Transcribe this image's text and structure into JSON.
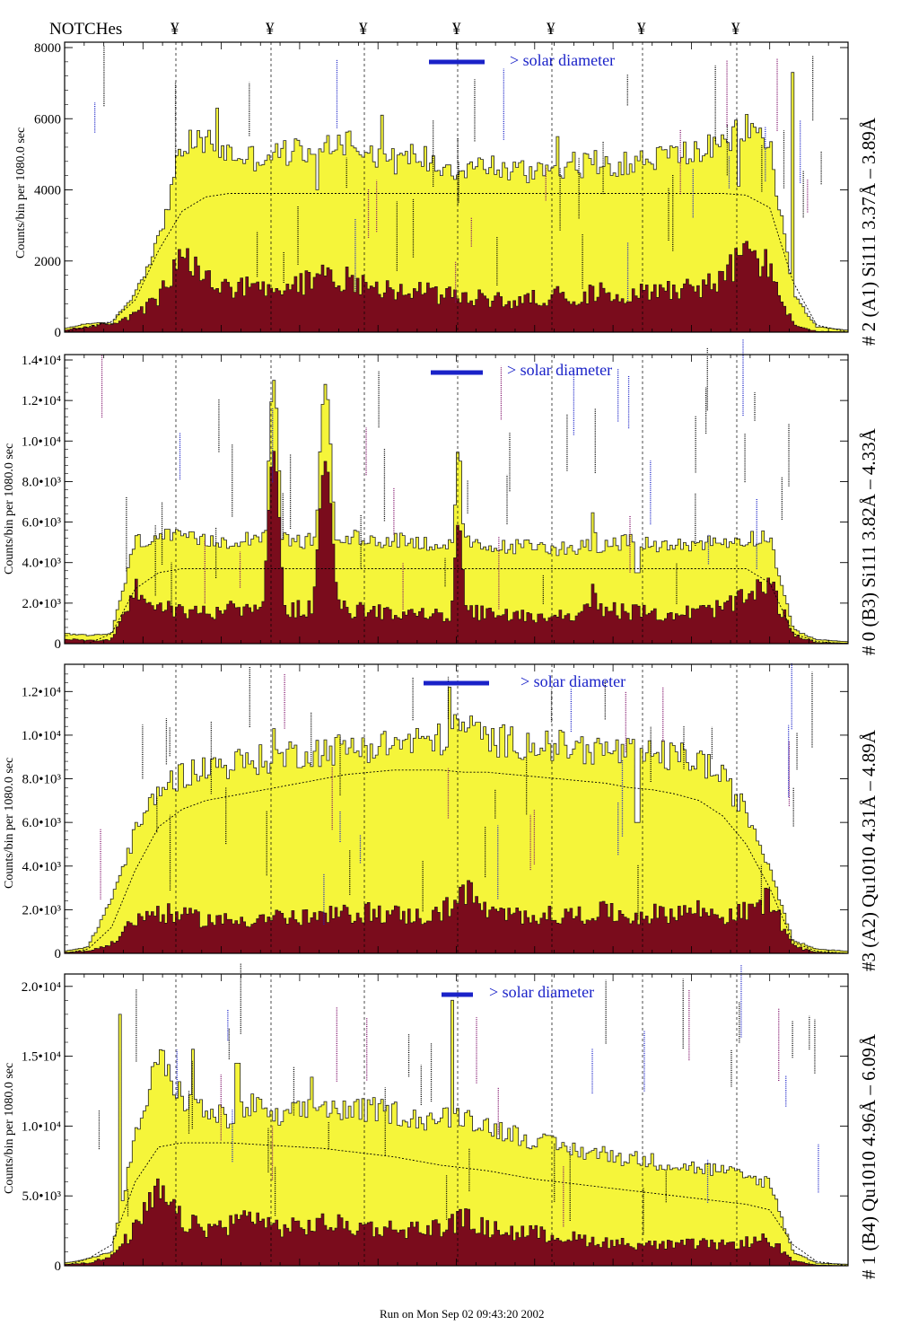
{
  "header": {
    "notch_title": "NOTCHes",
    "notch_glyph": "¥",
    "notch_count": 7
  },
  "footer": {
    "run_text": "Run on Mon Sep 02 09:43:20 2002"
  },
  "colors": {
    "fill_total": "#f5f53a",
    "fill_sub": "#7a0c1c",
    "solar_marker": "#1a22c8",
    "line_label_black": "#000000",
    "line_label_blue": "#1a22c8",
    "line_label_purple": "#80106a"
  },
  "chart_data": [
    {
      "type": "bar",
      "name": "panel-A1",
      "right_label": "# 2 (A1) Si111  3.37Å – 3.89Å",
      "ylabel": "Counts/bin per   1080.0 sec",
      "solar_label": "> solar diameter",
      "ylim": [
        0,
        8000
      ],
      "yticks": [
        {
          "v": 0,
          "label": "0"
        },
        {
          "v": 2000,
          "label": "2000"
        },
        {
          "v": 4000,
          "label": "4000"
        },
        {
          "v": 6000,
          "label": "6000"
        },
        {
          "v": 8000,
          "label": "8000"
        }
      ],
      "x": [
        0,
        3,
        6,
        9,
        12,
        15,
        18,
        21,
        24,
        27,
        30,
        33,
        36,
        39,
        42,
        45,
        48,
        51,
        54,
        57,
        60,
        63,
        66,
        69,
        72,
        75,
        78,
        81,
        84,
        87,
        90,
        93,
        96,
        100
      ],
      "total": [
        100,
        250,
        250,
        1100,
        2600,
        5200,
        5400,
        5000,
        4900,
        5000,
        5100,
        5300,
        5400,
        5100,
        4800,
        5000,
        4700,
        4600,
        4700,
        4500,
        4600,
        4700,
        4700,
        4800,
        4700,
        4900,
        5000,
        5100,
        5200,
        5800,
        5300,
        1100,
        150,
        50
      ],
      "sub": [
        50,
        150,
        250,
        450,
        900,
        1900,
        1500,
        1100,
        1200,
        1000,
        1300,
        1500,
        1400,
        1300,
        1100,
        1100,
        1000,
        900,
        900,
        800,
        900,
        1000,
        950,
        1100,
        1000,
        1100,
        1200,
        1200,
        1400,
        2200,
        1700,
        200,
        20,
        10
      ],
      "profile": [
        0,
        150,
        300,
        900,
        2300,
        3400,
        3800,
        3900,
        3900,
        3900,
        3900,
        3900,
        3900,
        3900,
        3900,
        3900,
        3900,
        3900,
        3900,
        3900,
        3900,
        3900,
        3900,
        3900,
        3900,
        3900,
        3900,
        3900,
        3900,
        3850,
        3500,
        1400,
        200,
        0
      ],
      "notch_dips": [
        {
          "x": 32.2,
          "v": 4000
        },
        {
          "x": 59.2,
          "v": 4200
        },
        {
          "x": 86.0,
          "v": 4100
        }
      ],
      "spikes": [
        {
          "x": 19.5,
          "v": 6300
        },
        {
          "x": 40.5,
          "v": 6100
        },
        {
          "x": 63.0,
          "v": 5500
        },
        {
          "x": 92.8,
          "v": 7300
        }
      ]
    },
    {
      "type": "bar",
      "name": "panel-B3",
      "right_label": "# 0 (B3) Si111  3.82Å – 4.33Å",
      "ylabel": "Counts/bin per   1080.0 sec",
      "solar_label": "> solar diameter",
      "ylim": [
        0,
        14000
      ],
      "yticks": [
        {
          "v": 0,
          "label": "0"
        },
        {
          "v": 2000,
          "label": "2.0•10³"
        },
        {
          "v": 4000,
          "label": "4.0•10³"
        },
        {
          "v": 6000,
          "label": "6.0•10³"
        },
        {
          "v": 8000,
          "label": "8.0•10³"
        },
        {
          "v": 10000,
          "label": "1.0•10⁴"
        },
        {
          "v": 12000,
          "label": "1.2•10⁴"
        },
        {
          "v": 14000,
          "label": "1.4•10⁴"
        }
      ],
      "x": [
        0,
        3,
        6,
        9,
        12,
        15,
        18,
        21,
        24,
        27,
        30,
        33,
        36,
        39,
        42,
        45,
        48,
        51,
        54,
        57,
        60,
        63,
        66,
        69,
        72,
        75,
        78,
        81,
        84,
        87,
        90,
        93,
        96,
        100
      ],
      "total": [
        500,
        400,
        500,
        5000,
        5300,
        5200,
        5000,
        5100,
        5300,
        5200,
        5000,
        5300,
        5300,
        5000,
        5200,
        5000,
        4900,
        5000,
        4700,
        4800,
        4800,
        4700,
        4800,
        4900,
        5000,
        4900,
        4800,
        5000,
        5000,
        5200,
        5300,
        700,
        200,
        100
      ],
      "sub": [
        200,
        150,
        200,
        2500,
        1800,
        1500,
        1500,
        1600,
        1500,
        1700,
        1600,
        1800,
        1600,
        1500,
        1500,
        1400,
        1300,
        1500,
        1400,
        1300,
        1300,
        1300,
        1500,
        1600,
        1500,
        1400,
        1400,
        1500,
        1700,
        2100,
        2800,
        400,
        50,
        30
      ],
      "profile": [
        0,
        0,
        500,
        2700,
        3500,
        3700,
        3700,
        3700,
        3700,
        3700,
        3700,
        3700,
        3700,
        3700,
        3700,
        3700,
        3700,
        3700,
        3700,
        3700,
        3700,
        3700,
        3700,
        3700,
        3700,
        3700,
        3700,
        3700,
        3700,
        3700,
        3000,
        500,
        100,
        0
      ],
      "notch_dips": [
        {
          "x": 73.1,
          "v": 3500
        }
      ],
      "peaks": [
        {
          "x": 26.7,
          "w": 1.1,
          "total": 13000,
          "sub": 9500
        },
        {
          "x": 33.3,
          "w": 1.3,
          "total": 12800,
          "sub": 9000
        },
        {
          "x": 50.3,
          "w": 0.8,
          "total": 9700,
          "sub": 6000
        },
        {
          "x": 67.5,
          "w": 0.6,
          "total": 6600,
          "sub": 3000
        }
      ]
    },
    {
      "type": "bar",
      "name": "panel-A2",
      "right_label": "#3 (A2) Qu1010  4.31Å – 4.89Å",
      "ylabel": "Counts/bin per   1080.0 sec",
      "solar_label": "> solar diameter",
      "ylim": [
        0,
        13000
      ],
      "yticks": [
        {
          "v": 0,
          "label": "0"
        },
        {
          "v": 2000,
          "label": "2.0•10³"
        },
        {
          "v": 4000,
          "label": "4.0•10³"
        },
        {
          "v": 6000,
          "label": "6.0•10³"
        },
        {
          "v": 8000,
          "label": "8.0•10³"
        },
        {
          "v": 10000,
          "label": "1.0•10⁴"
        },
        {
          "v": 12000,
          "label": "1.2•10⁴"
        }
      ],
      "x": [
        0,
        3,
        6,
        9,
        12,
        15,
        18,
        21,
        24,
        27,
        30,
        33,
        36,
        39,
        42,
        45,
        48,
        51,
        54,
        57,
        60,
        63,
        66,
        69,
        72,
        75,
        78,
        81,
        84,
        87,
        90,
        93,
        96,
        100
      ],
      "total": [
        100,
        300,
        2500,
        5500,
        7500,
        8200,
        8500,
        8700,
        8800,
        9000,
        9200,
        9300,
        9400,
        9500,
        9600,
        9700,
        9800,
        10500,
        9800,
        9700,
        9600,
        9500,
        9400,
        9300,
        9200,
        9100,
        9000,
        8900,
        8000,
        6500,
        4000,
        600,
        200,
        100
      ],
      "sub": [
        50,
        100,
        400,
        1500,
        1800,
        1600,
        1500,
        1400,
        1500,
        1600,
        1500,
        1600,
        1700,
        1800,
        1700,
        1600,
        1700,
        2800,
        1800,
        1600,
        1700,
        1600,
        1700,
        1800,
        1600,
        1700,
        1800,
        1900,
        1600,
        1800,
        2400,
        300,
        50,
        10
      ],
      "profile": [
        0,
        200,
        1200,
        3800,
        5800,
        6600,
        7000,
        7200,
        7400,
        7600,
        7800,
        8000,
        8200,
        8300,
        8400,
        8400,
        8400,
        8300,
        8300,
        8200,
        8100,
        8000,
        7900,
        7800,
        7600,
        7500,
        7300,
        7000,
        6300,
        5000,
        3000,
        500,
        100,
        0
      ],
      "notch_dips": [
        {
          "x": 73.1,
          "v": 6000
        }
      ],
      "spikes": [
        {
          "x": 26.8,
          "v": 10300
        },
        {
          "x": 49.2,
          "v": 12200
        },
        {
          "x": 73.1,
          "v": 10300
        }
      ]
    },
    {
      "type": "bar",
      "name": "panel-B4",
      "right_label": "# 1 (B4) Qu1010  4.96Å – 6.09Å",
      "ylabel": "Counts/bin per   1080.0 sec",
      "solar_label": "> solar diameter",
      "ylim": [
        0,
        20500
      ],
      "yticks": [
        {
          "v": 0,
          "label": "0"
        },
        {
          "v": 5000,
          "label": "5.0•10³"
        },
        {
          "v": 10000,
          "label": "1.0•10⁴"
        },
        {
          "v": 15000,
          "label": "1.5•10⁴"
        },
        {
          "v": 20000,
          "label": "2.0•10⁴"
        }
      ],
      "x": [
        0,
        3,
        6,
        9,
        12,
        15,
        18,
        21,
        24,
        27,
        30,
        33,
        36,
        39,
        42,
        45,
        48,
        51,
        54,
        57,
        60,
        63,
        66,
        69,
        72,
        75,
        78,
        81,
        84,
        87,
        90,
        93,
        96,
        100
      ],
      "total": [
        200,
        500,
        1000,
        9000,
        15000,
        12000,
        11000,
        10500,
        11500,
        10500,
        11000,
        11500,
        11000,
        11200,
        11000,
        10500,
        10500,
        10800,
        10000,
        9500,
        9000,
        8500,
        8200,
        8000,
        7700,
        7500,
        7200,
        7000,
        6800,
        6300,
        6000,
        1000,
        200,
        100
      ],
      "sub": [
        100,
        200,
        600,
        2500,
        5000,
        3000,
        2500,
        2800,
        3500,
        2600,
        2600,
        2900,
        2700,
        2600,
        2500,
        2500,
        2600,
        3200,
        2500,
        2300,
        2200,
        2000,
        1800,
        1600,
        1500,
        1400,
        1400,
        1500,
        1400,
        1600,
        1800,
        300,
        50,
        10
      ],
      "profile": [
        0,
        500,
        1500,
        6000,
        8500,
        8800,
        8800,
        8800,
        8700,
        8600,
        8500,
        8400,
        8200,
        8000,
        7800,
        7500,
        7200,
        7000,
        6800,
        6500,
        6200,
        6000,
        5800,
        5600,
        5400,
        5200,
        5000,
        4800,
        4600,
        4400,
        4000,
        1500,
        300,
        0
      ],
      "spikes": [
        {
          "x": 7.1,
          "v": 18000
        },
        {
          "x": 49.5,
          "v": 19000
        },
        {
          "x": 16.5,
          "v": 15500
        },
        {
          "x": 22.1,
          "v": 14500
        },
        {
          "x": 31.5,
          "v": 13500
        }
      ]
    }
  ]
}
